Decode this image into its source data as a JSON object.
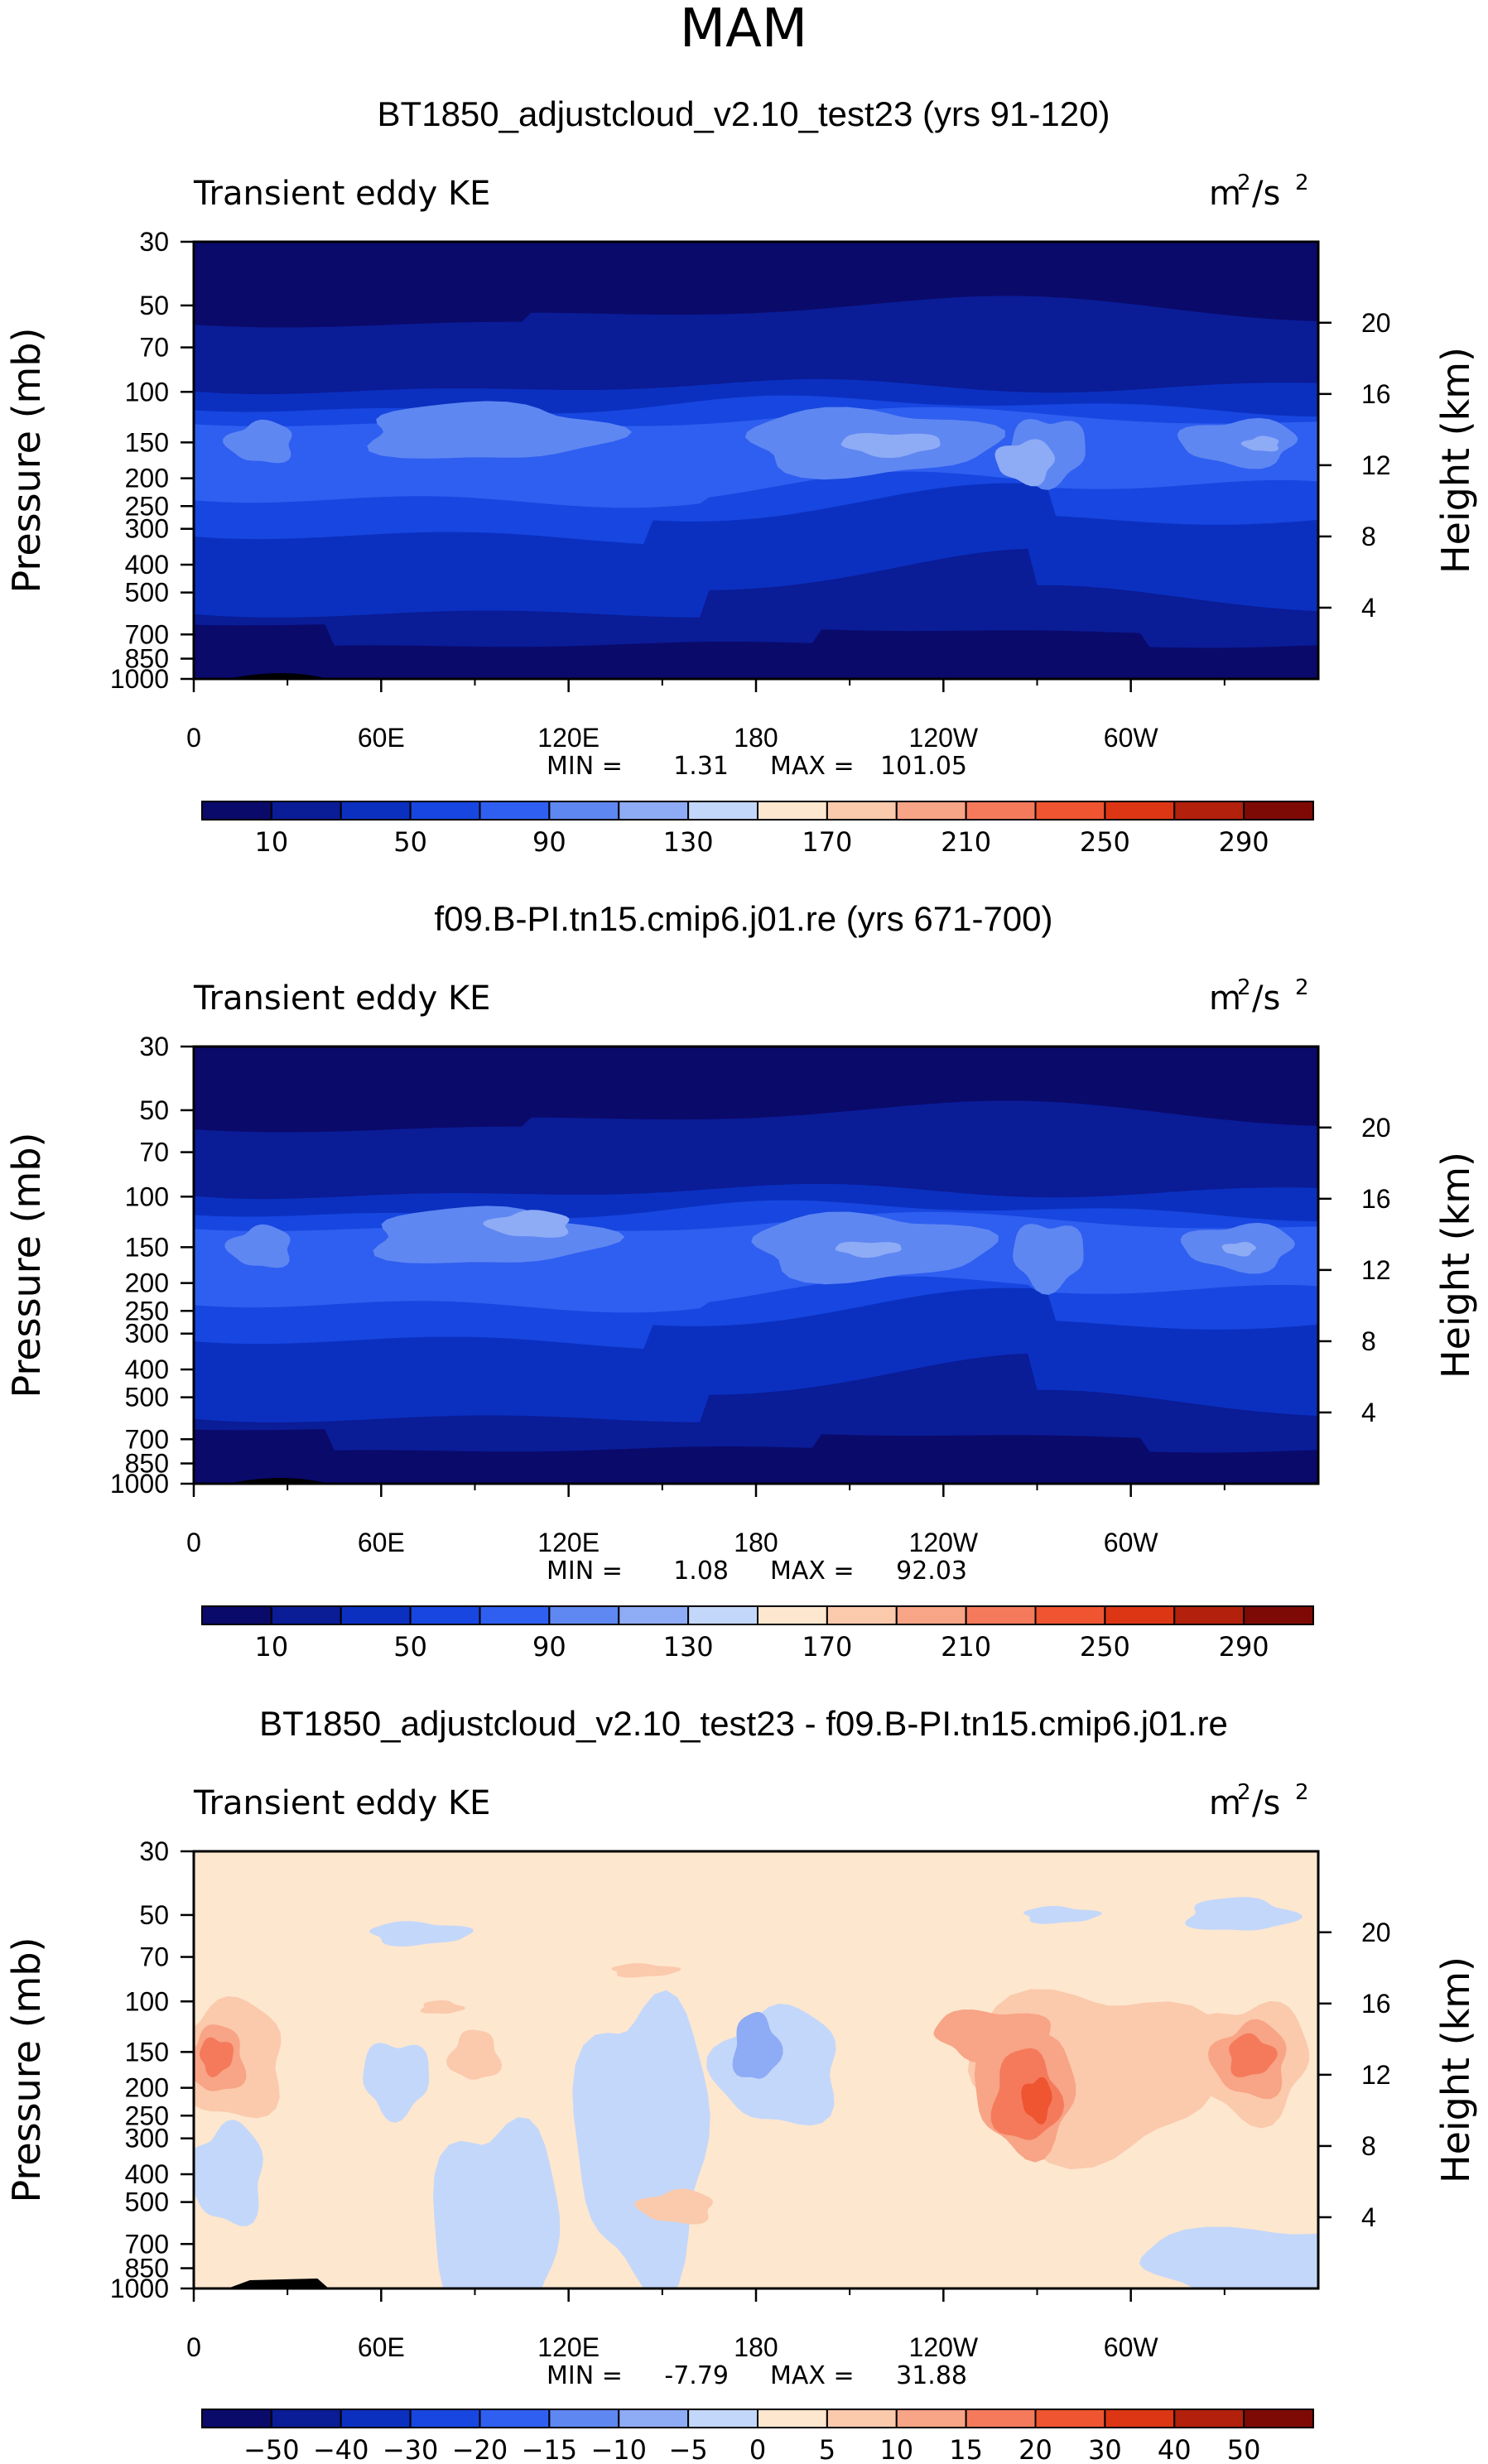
{
  "figure": {
    "season": "MAM"
  },
  "chart_data": [
    {
      "type": "heatmap",
      "title": "BT1850_adjustcloud_v2.10_test23 (yrs 91-120)",
      "left_label": "Transient eddy KE",
      "units_base": "m",
      "units_exp1": "2",
      "units_mid": "/s",
      "units_exp2": "2",
      "ylabel": "Pressure (mb)",
      "ylabel_right": "Height (km)",
      "xlabel": "",
      "x_ticks": [
        "0",
        "60E",
        "120E",
        "180",
        "120W",
        "60W"
      ],
      "y_ticks": [
        "30",
        "50",
        "70",
        "100",
        "150",
        "200",
        "250",
        "300",
        "400",
        "500",
        "700",
        "850",
        "1000"
      ],
      "y_right_ticks": [
        "20",
        "16",
        "12",
        "8",
        "4"
      ],
      "min_label": "MIN =",
      "min_value": "1.31",
      "max_label": "MAX =",
      "max_value": "101.05",
      "colorbar_labels": [
        "10",
        "50",
        "90",
        "130",
        "170",
        "210",
        "250",
        "290"
      ],
      "colorbar_levels": [
        10,
        30,
        50,
        70,
        90,
        110,
        130,
        150,
        170,
        190,
        210,
        230,
        250,
        270,
        290
      ]
    },
    {
      "type": "heatmap",
      "title": "f09.B-PI.tn15.cmip6.j01.re (yrs 671-700)",
      "left_label": "Transient eddy KE",
      "units_base": "m",
      "units_exp1": "2",
      "units_mid": "/s",
      "units_exp2": "2",
      "ylabel": "Pressure (mb)",
      "ylabel_right": "Height (km)",
      "xlabel": "",
      "x_ticks": [
        "0",
        "60E",
        "120E",
        "180",
        "120W",
        "60W"
      ],
      "y_ticks": [
        "30",
        "50",
        "70",
        "100",
        "150",
        "200",
        "250",
        "300",
        "400",
        "500",
        "700",
        "850",
        "1000"
      ],
      "y_right_ticks": [
        "20",
        "16",
        "12",
        "8",
        "4"
      ],
      "min_label": "MIN =",
      "min_value": "1.08",
      "max_label": "MAX =",
      "max_value": "92.03",
      "colorbar_labels": [
        "10",
        "50",
        "90",
        "130",
        "170",
        "210",
        "250",
        "290"
      ],
      "colorbar_levels": [
        10,
        30,
        50,
        70,
        90,
        110,
        130,
        150,
        170,
        190,
        210,
        230,
        250,
        270,
        290
      ]
    },
    {
      "type": "heatmap",
      "title": "BT1850_adjustcloud_v2.10_test23 - f09.B-PI.tn15.cmip6.j01.re",
      "left_label": "Transient eddy KE",
      "units_base": "m",
      "units_exp1": "2",
      "units_mid": "/s",
      "units_exp2": "2",
      "ylabel": "Pressure (mb)",
      "ylabel_right": "Height (km)",
      "xlabel": "",
      "x_ticks": [
        "0",
        "60E",
        "120E",
        "180",
        "120W",
        "60W"
      ],
      "y_ticks": [
        "30",
        "50",
        "70",
        "100",
        "150",
        "200",
        "250",
        "300",
        "400",
        "500",
        "700",
        "850",
        "1000"
      ],
      "y_right_ticks": [
        "20",
        "16",
        "12",
        "8",
        "4"
      ],
      "min_label": "MIN =",
      "min_value": "-7.79",
      "max_label": "MAX =",
      "max_value": "31.88",
      "colorbar_labels": [
        "−50",
        "−40",
        "−30",
        "−20",
        "−15",
        "−10",
        "−5",
        "0",
        "5",
        "10",
        "15",
        "20",
        "30",
        "40",
        "50"
      ],
      "colorbar_levels": [
        -50,
        -40,
        -30,
        -20,
        -15,
        -10,
        -5,
        0,
        5,
        10,
        15,
        20,
        30,
        40,
        50
      ]
    }
  ],
  "colors": {
    "cmap16": [
      "#0a0a6b",
      "#0a1c96",
      "#0b30c0",
      "#1746e0",
      "#2f5ff0",
      "#5f87f2",
      "#8eabf5",
      "#c3d7fa",
      "#fde7cf",
      "#fbc9ab",
      "#f8a486",
      "#f57a5c",
      "#ef5531",
      "#dc3615",
      "#b3200c",
      "#7d0a05"
    ],
    "frame": "#000000"
  }
}
